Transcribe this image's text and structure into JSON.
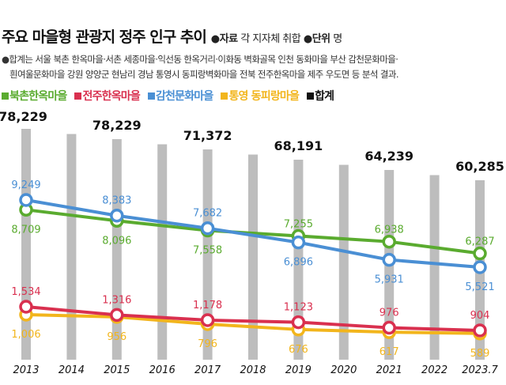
{
  "header": {
    "title": "주요 마을형 관광지 정주 인구 추이",
    "source_label": "●자료",
    "source": "각 지자체 취합",
    "unit_label": "●단위",
    "unit": "명"
  },
  "note": {
    "line1": "●합계는 서울 북촌 한옥마을·서촌 세종마을·익선동 한옥거리·이화동 벽화골목 인천 동화마을 부산 감천문화마을·",
    "line2": "흰여울문화마을 강원 양양군 현남리 경남 통영시 동피랑벽화마을 전북 전주한옥마을 제주 우도면 등 분석 결과."
  },
  "chart_data": {
    "type": "bar+line",
    "categories": [
      "2013",
      "2014",
      "2015",
      "2016",
      "2017",
      "2018",
      "2019",
      "2020",
      "2021",
      "2022",
      "2023.7"
    ],
    "total": {
      "name": "합계",
      "color": "#000000",
      "bar_color": "#bdbdbd",
      "values": [
        78229,
        null,
        78229,
        null,
        71372,
        null,
        68191,
        null,
        64239,
        null,
        60285
      ]
    },
    "series": [
      {
        "name": "북촌한옥마을",
        "color": "#5aab2f",
        "values": [
          8709,
          null,
          8096,
          null,
          7558,
          null,
          7255,
          null,
          6938,
          null,
          6287
        ]
      },
      {
        "name": "전주한옥마을",
        "color": "#d9304f",
        "values": [
          1534,
          null,
          1316,
          null,
          1178,
          null,
          1123,
          null,
          976,
          null,
          904
        ]
      },
      {
        "name": "감천문화마을",
        "color": "#4a8fd4",
        "values": [
          9249,
          null,
          8383,
          null,
          7682,
          null,
          6896,
          null,
          5931,
          null,
          5521
        ]
      },
      {
        "name": "통영 동피랑마을",
        "color": "#f2b51c",
        "values": [
          1006,
          null,
          956,
          null,
          796,
          null,
          676,
          null,
          617,
          null,
          589
        ]
      }
    ],
    "grid": false,
    "legend": "top-left"
  }
}
